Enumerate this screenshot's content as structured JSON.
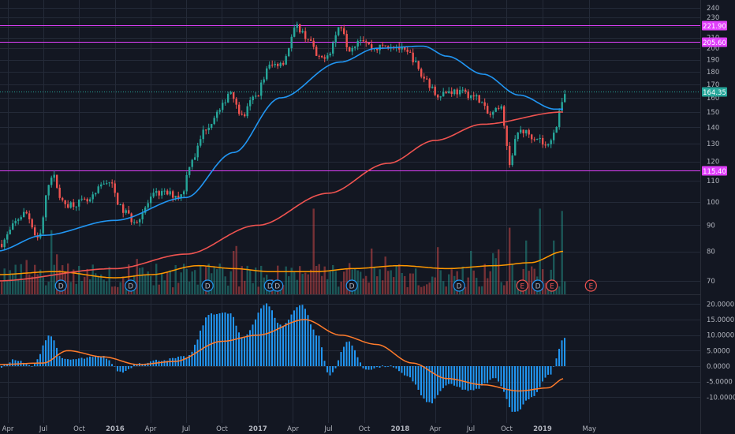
{
  "colors": {
    "background": "#131722",
    "grid": "#242a38",
    "bull": "#26a69a",
    "bear": "#ef5350",
    "ma_fast": "#2196f3",
    "ma_slow": "#ef5350",
    "volume_ma": "#ff9800",
    "magenta": "#e040fb",
    "axis_text": "#b2b5be",
    "macd_signal": "#ff7b2b",
    "macd_hist": "#2196f3"
  },
  "chart_data": [
    {
      "type": "candlestick",
      "name": "price",
      "y_scale": "log",
      "ylim": [
        64,
        240
      ],
      "grid": true,
      "x_ticks": [
        "Apr",
        "Jul",
        "Oct",
        "2016",
        "Apr",
        "Jul",
        "Oct",
        "2017",
        "Apr",
        "Jul",
        "Oct",
        "2018",
        "Apr",
        "Jul",
        "Oct",
        "2019",
        "May"
      ],
      "y_ticks": [
        70,
        80,
        90,
        100,
        110,
        120,
        130,
        140,
        150,
        160,
        170,
        180,
        190,
        200,
        210,
        220,
        230,
        240
      ],
      "price_control_points": [
        [
          "2015-03-01",
          82
        ],
        [
          "2015-05-15",
          95
        ],
        [
          "2015-06-15",
          84
        ],
        [
          "2015-07-20",
          113
        ],
        [
          "2015-08-20",
          99
        ],
        [
          "2015-10-20",
          100
        ],
        [
          "2015-12-10",
          110
        ],
        [
          "2016-01-20",
          96
        ],
        [
          "2016-02-15",
          92
        ],
        [
          "2016-04-20",
          104
        ],
        [
          "2016-06-15",
          103
        ],
        [
          "2016-07-15",
          122
        ],
        [
          "2016-08-20",
          140
        ],
        [
          "2016-09-20",
          150
        ],
        [
          "2016-10-20",
          165
        ],
        [
          "2016-11-20",
          147
        ],
        [
          "2016-12-20",
          160
        ],
        [
          "2017-02-01",
          185
        ],
        [
          "2017-03-01",
          188
        ],
        [
          "2017-04-10",
          220
        ],
        [
          "2017-05-05",
          210
        ],
        [
          "2017-06-05",
          190
        ],
        [
          "2017-06-25",
          195
        ],
        [
          "2017-08-01",
          222
        ],
        [
          "2017-08-20",
          200
        ],
        [
          "2017-09-20",
          210
        ],
        [
          "2017-10-20",
          200
        ],
        [
          "2017-12-10",
          203
        ],
        [
          "2018-01-20",
          195
        ],
        [
          "2018-03-01",
          175
        ],
        [
          "2018-04-01",
          163
        ],
        [
          "2018-05-15",
          165
        ],
        [
          "2018-06-15",
          163
        ],
        [
          "2018-07-15",
          160
        ],
        [
          "2018-08-15",
          148
        ],
        [
          "2018-09-15",
          152
        ],
        [
          "2018-10-05",
          120
        ],
        [
          "2018-11-01",
          138
        ],
        [
          "2018-12-15",
          134
        ],
        [
          "2019-01-10",
          128
        ],
        [
          "2019-02-01",
          140
        ],
        [
          "2019-02-25",
          164
        ]
      ],
      "moving_averages": [
        {
          "points": [
            [
              "2015-03-01",
              80
            ],
            [
              "2015-07-01",
              86
            ],
            [
              "2016-01-01",
              92
            ],
            [
              "2016-07-01",
              102
            ],
            [
              "2016-11-01",
              125
            ],
            [
              "2017-03-01",
              160
            ],
            [
              "2017-08-01",
              188
            ],
            [
              "2017-11-01",
              200
            ],
            [
              "2018-03-01",
              202
            ],
            [
              "2018-05-01",
              193
            ],
            [
              "2018-08-01",
              178
            ],
            [
              "2018-11-01",
              162
            ],
            [
              "2019-02-01",
              152
            ]
          ]
        },
        {
          "points": [
            [
              "2015-03-01",
              70
            ],
            [
              "2016-01-01",
              74
            ],
            [
              "2016-07-01",
              79
            ],
            [
              "2017-01-01",
              90
            ],
            [
              "2017-07-01",
              104
            ],
            [
              "2017-12-01",
              119
            ],
            [
              "2018-04-01",
              132
            ],
            [
              "2018-08-01",
              142
            ],
            [
              "2019-02-20",
              150
            ]
          ]
        }
      ],
      "volume": {
        "ma_points": [
          [
            "2015-03-01",
            72
          ],
          [
            "2015-08-01",
            73
          ],
          [
            "2016-01-01",
            71
          ],
          [
            "2016-04-01",
            72
          ],
          [
            "2016-08-01",
            75
          ],
          [
            "2016-11-01",
            74
          ],
          [
            "2017-02-01",
            73
          ],
          [
            "2017-06-01",
            73
          ],
          [
            "2017-09-01",
            74
          ],
          [
            "2018-01-01",
            75
          ],
          [
            "2018-05-01",
            74
          ],
          [
            "2018-09-01",
            75
          ],
          [
            "2018-12-01",
            76
          ],
          [
            "2019-02-25",
            80
          ]
        ],
        "spikes": [
          [
            "2015-07-20",
            88
          ],
          [
            "2017-05-20",
            97
          ],
          [
            "2017-10-15",
            81
          ],
          [
            "2018-10-05",
            89
          ],
          [
            "2018-11-20",
            84
          ],
          [
            "2018-12-20",
            97
          ],
          [
            "2019-01-25",
            84
          ],
          [
            "2019-02-20",
            96
          ]
        ]
      },
      "events": [
        {
          "date": "2015-08-15",
          "label": "D"
        },
        {
          "date": "2016-02-10",
          "label": "D"
        },
        {
          "date": "2016-08-25",
          "label": "D"
        },
        {
          "date": "2017-02-01",
          "label": "D"
        },
        {
          "date": "2017-02-20",
          "label": "D"
        },
        {
          "date": "2017-08-30",
          "label": "D"
        },
        {
          "date": "2018-06-01",
          "label": "D"
        },
        {
          "date": "2018-11-10",
          "label": "E"
        },
        {
          "date": "2018-12-20",
          "label": "D"
        },
        {
          "date": "2019-01-25",
          "label": "E"
        },
        {
          "date": "2019-05-05",
          "label": "E"
        }
      ],
      "horizontal_lines": [
        {
          "value": 221.9,
          "label": "221.90",
          "color": "#e040fb"
        },
        {
          "value": 205.6,
          "label": "205.60",
          "color": "#e040fb"
        },
        {
          "value": 115.4,
          "label": "115.40",
          "color": "#e040fb"
        },
        {
          "value": 164.35,
          "label": "164.35",
          "color": "#26a69a",
          "dotted": true
        }
      ]
    },
    {
      "type": "histogram",
      "name": "macd",
      "ylim": [
        -12,
        21
      ],
      "grid": true,
      "y_ticks": [
        "20.0000",
        "15.0000",
        "10.0000",
        "5.0000",
        "0.0000",
        "-5.0000",
        "-10.0000"
      ],
      "histogram_control_points": [
        [
          "2015-03-01",
          -1
        ],
        [
          "2015-04-15",
          2
        ],
        [
          "2015-06-01",
          0
        ],
        [
          "2015-07-15",
          10
        ],
        [
          "2015-08-20",
          2
        ],
        [
          "2015-12-01",
          3
        ],
        [
          "2016-01-15",
          -2
        ],
        [
          "2016-03-01",
          1
        ],
        [
          "2016-05-01",
          2
        ],
        [
          "2016-07-01",
          3
        ],
        [
          "2016-09-01",
          17
        ],
        [
          "2016-10-20",
          17
        ],
        [
          "2016-11-20",
          9
        ],
        [
          "2017-01-20",
          20
        ],
        [
          "2017-03-01",
          13
        ],
        [
          "2017-04-20",
          20
        ],
        [
          "2017-06-01",
          10
        ],
        [
          "2017-07-01",
          -3
        ],
        [
          "2017-08-20",
          8
        ],
        [
          "2017-10-01",
          -1
        ],
        [
          "2017-12-01",
          0
        ],
        [
          "2018-01-15",
          -3
        ],
        [
          "2018-03-15",
          -12
        ],
        [
          "2018-05-01",
          -6
        ],
        [
          "2018-07-01",
          -8
        ],
        [
          "2018-09-01",
          -4
        ],
        [
          "2018-10-20",
          -15
        ],
        [
          "2018-12-01",
          -10
        ],
        [
          "2019-01-15",
          -3
        ],
        [
          "2019-02-25",
          9
        ]
      ],
      "signal_points": [
        [
          "2015-03-01",
          0.5
        ],
        [
          "2015-07-01",
          1
        ],
        [
          "2015-09-01",
          5
        ],
        [
          "2015-12-01",
          3
        ],
        [
          "2016-03-01",
          0.5
        ],
        [
          "2016-06-01",
          1.5
        ],
        [
          "2016-10-01",
          8
        ],
        [
          "2017-01-01",
          10
        ],
        [
          "2017-05-01",
          15
        ],
        [
          "2017-08-01",
          10
        ],
        [
          "2017-11-01",
          7
        ],
        [
          "2018-02-01",
          1
        ],
        [
          "2018-05-01",
          -4
        ],
        [
          "2018-08-01",
          -6
        ],
        [
          "2018-11-01",
          -8
        ],
        [
          "2019-01-15",
          -7
        ],
        [
          "2019-02-25",
          -4
        ]
      ]
    }
  ]
}
